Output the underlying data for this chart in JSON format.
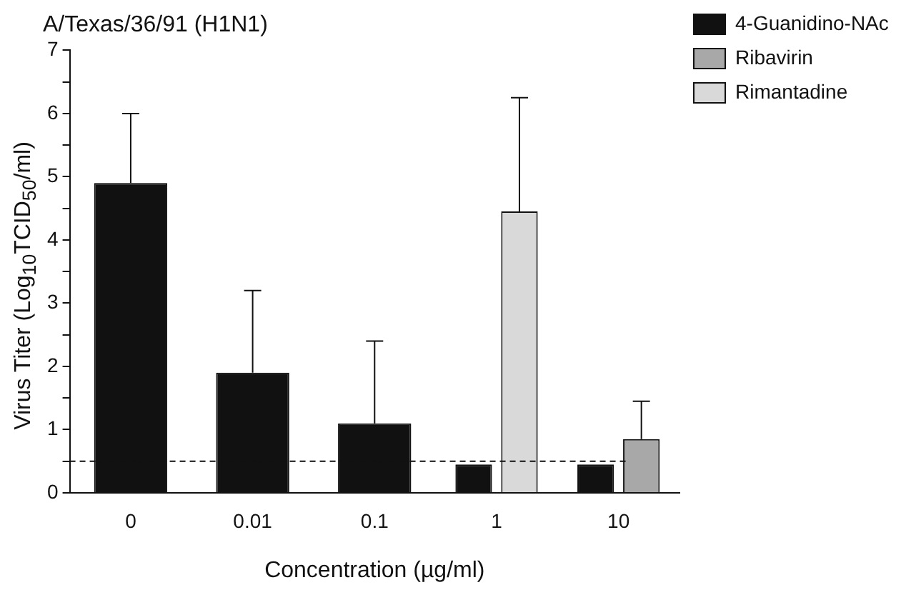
{
  "chart_data": {
    "type": "bar",
    "title": "A/Texas/36/91 (H1N1)",
    "xlabel": "Concentration (µg/ml)",
    "ylabel": "Virus Titer (Log$_{10}$TCID$_{50}$/ml)",
    "categories": [
      "0",
      "0.01",
      "0.1",
      "1",
      "10"
    ],
    "series": [
      {
        "name": "4-Guanidino-NAc",
        "color": "#111111",
        "values": [
          4.9,
          1.9,
          1.1,
          0.45,
          0.45
        ],
        "errors": [
          [
            4.9,
            6.0
          ],
          [
            1.9,
            3.2
          ],
          [
            1.1,
            2.4
          ],
          null,
          null
        ]
      },
      {
        "name": "Ribavirin",
        "color": "#a8a8a8",
        "values": [
          null,
          null,
          null,
          null,
          0.85
        ],
        "errors": [
          null,
          null,
          null,
          null,
          [
            0.85,
            1.45
          ]
        ]
      },
      {
        "name": "Rimantadine",
        "color": "#d9d9d9",
        "values": [
          null,
          null,
          null,
          4.45,
          null
        ],
        "errors": [
          null,
          null,
          null,
          [
            4.45,
            6.25
          ],
          null
        ]
      }
    ],
    "ylim": [
      0,
      7
    ],
    "yticks": [
      0,
      {
        "value": 0.5,
        "label": null
      },
      1,
      {
        "value": 1.5,
        "label": null
      },
      2,
      {
        "value": 2.5,
        "label": null
      },
      3,
      {
        "value": 3.5,
        "label": null
      },
      4,
      {
        "value": 4.5,
        "label": null
      },
      5,
      {
        "value": 5.5,
        "label": null
      },
      6,
      {
        "value": 6.5,
        "label": null
      },
      7
    ],
    "ref_lines": [
      {
        "axis": "y",
        "value": 0.5,
        "line_style": "dashed",
        "color": "#111111"
      }
    ],
    "grid": false,
    "legend": "top right"
  }
}
